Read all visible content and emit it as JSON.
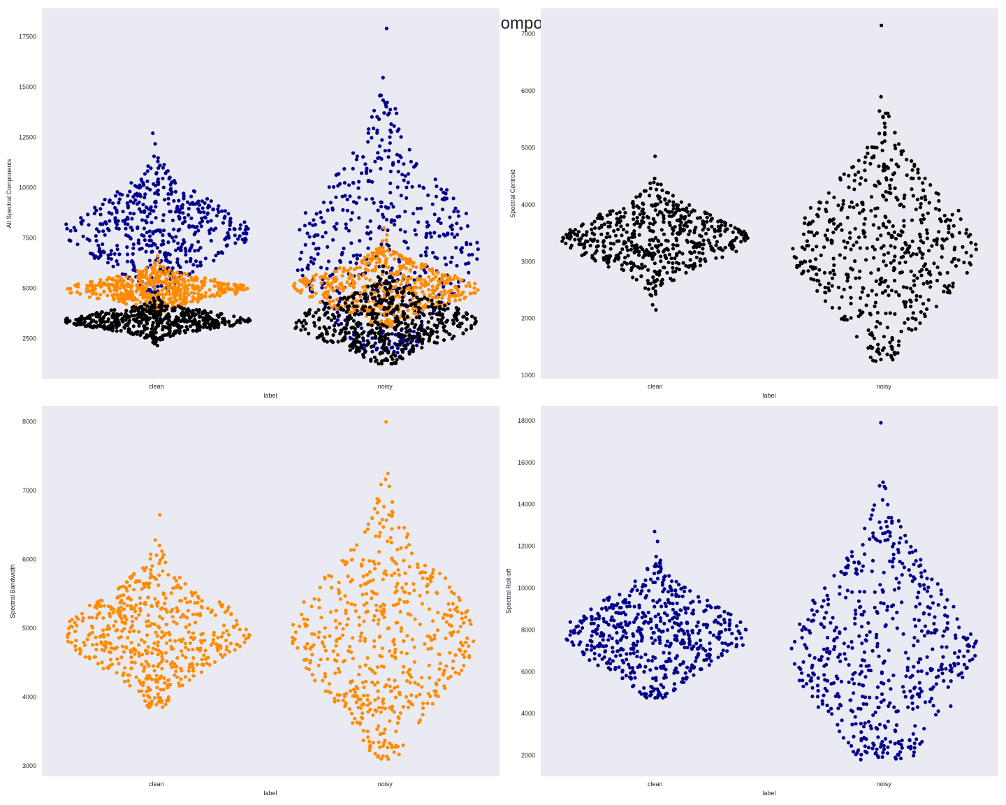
{
  "figure": {
    "title": "Spectral Components",
    "background": "#ffffff",
    "axes_background": "#eaeaf2"
  },
  "colors": {
    "centroid": "#000000",
    "bandwidth": "#ff8c00",
    "rolloff": "#00008b"
  },
  "chart_data": [
    {
      "id": "all",
      "type": "scatter",
      "subtype": "swarm",
      "xlabel": "label",
      "ylabel": "All Spectral Components",
      "categories": [
        "clean",
        "noisy"
      ],
      "ylim": [
        500,
        18900
      ],
      "yticks": [
        2500,
        5000,
        7500,
        10000,
        12500,
        15000,
        17500
      ],
      "grid": false,
      "series": [
        {
          "ref": "rolloff",
          "color": "#00008b",
          "clean": {
            "min": 4800,
            "max": 12700,
            "center": 7800,
            "spread": 1500
          },
          "noisy": {
            "min": 1800,
            "max": 17900,
            "center": 7000,
            "spread": 3300
          }
        },
        {
          "ref": "bandwidth",
          "color": "#ff8c00",
          "clean": {
            "min": 3800,
            "max": 6600,
            "center": 4950,
            "spread": 500
          },
          "noisy": {
            "min": 3100,
            "max": 8000,
            "center": 5000,
            "spread": 900
          }
        },
        {
          "ref": "centroid",
          "color": "#000000",
          "clean": {
            "min": 2150,
            "max": 4800,
            "center": 3400,
            "spread": 420
          },
          "noisy": {
            "min": 1250,
            "max": 7100,
            "center": 3300,
            "spread": 1000
          }
        }
      ]
    },
    {
      "id": "centroid",
      "type": "scatter",
      "subtype": "swarm",
      "xlabel": "label",
      "ylabel": "Spectral Centroid",
      "categories": [
        "clean",
        "noisy"
      ],
      "ylim": [
        940,
        7450
      ],
      "yticks": [
        1000,
        2000,
        3000,
        4000,
        5000,
        6000,
        7000
      ],
      "grid": false,
      "series": [
        {
          "ref": "centroid",
          "color": "#000000",
          "clean": {
            "min": 2150,
            "max": 4850,
            "center": 3400,
            "spread": 420
          },
          "noisy": {
            "min": 1250,
            "max": 7150,
            "center": 3250,
            "spread": 1000
          }
        }
      ]
    },
    {
      "id": "bandwidth",
      "type": "scatter",
      "subtype": "swarm",
      "xlabel": "label",
      "ylabel": "Spectral Bandwidth",
      "categories": [
        "clean",
        "noisy"
      ],
      "ylim": [
        2850,
        8230
      ],
      "yticks": [
        3000,
        4000,
        5000,
        6000,
        7000,
        8000
      ],
      "grid": false,
      "series": [
        {
          "ref": "bandwidth",
          "color": "#ff8c00",
          "clean": {
            "min": 3850,
            "max": 6650,
            "center": 4950,
            "spread": 500
          },
          "noisy": {
            "min": 3100,
            "max": 8000,
            "center": 4900,
            "spread": 900
          }
        }
      ]
    },
    {
      "id": "rolloff",
      "type": "scatter",
      "subtype": "swarm",
      "xlabel": "label",
      "ylabel": "Spectral Roll-off",
      "categories": [
        "clean",
        "noisy"
      ],
      "ylim": [
        1000,
        18700
      ],
      "yticks": [
        2000,
        4000,
        6000,
        8000,
        10000,
        12000,
        14000,
        16000,
        18000
      ],
      "grid": false,
      "series": [
        {
          "ref": "rolloff",
          "color": "#00008b",
          "clean": {
            "min": 4750,
            "max": 12700,
            "center": 7800,
            "spread": 1500
          },
          "noisy": {
            "min": 1800,
            "max": 17900,
            "center": 7000,
            "spread": 3300
          }
        }
      ]
    }
  ]
}
